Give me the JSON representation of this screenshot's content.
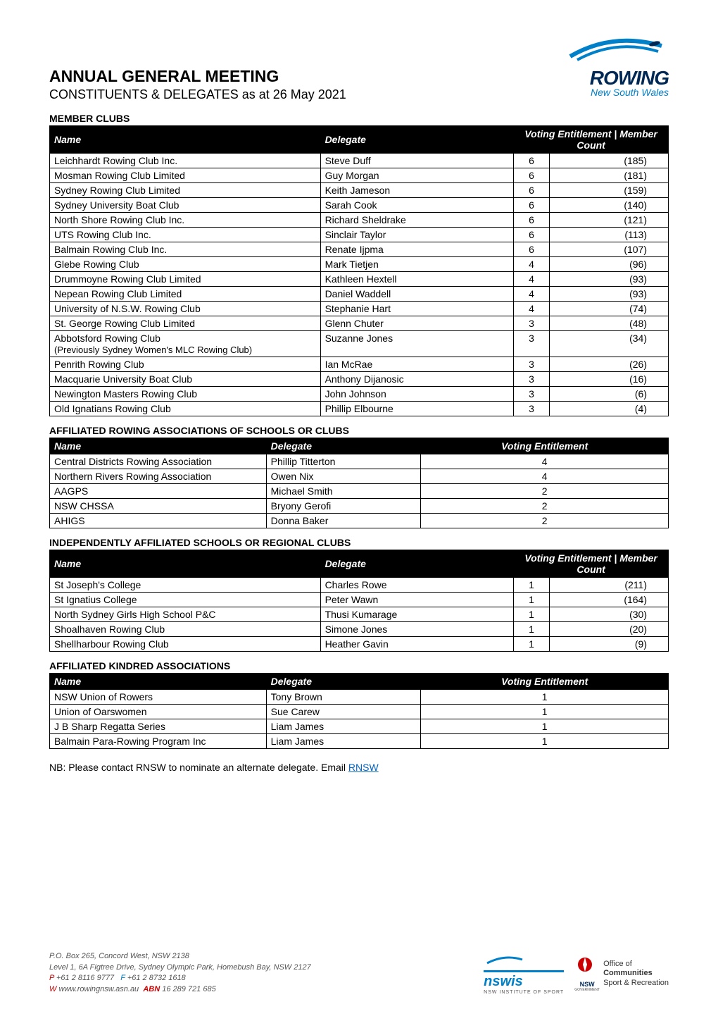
{
  "header": {
    "title": "ANNUAL GENERAL MEETING",
    "subtitle": "CONSTITUENTS & DELEGATES as at 26 May 2021",
    "logo_main": "ROWING",
    "logo_sub": "New South Wales"
  },
  "sections": {
    "member_clubs": {
      "title": "MEMBER CLUBS",
      "columns": [
        "Name",
        "Delegate",
        "Voting Entitlement | Member Count"
      ],
      "rows": [
        {
          "name": "Leichhardt Rowing Club Inc.",
          "delegate": "Steve Duff",
          "voting": "6",
          "count": "(185)"
        },
        {
          "name": "Mosman Rowing Club Limited",
          "delegate": "Guy Morgan",
          "voting": "6",
          "count": "(181)"
        },
        {
          "name": "Sydney Rowing Club Limited",
          "delegate": "Keith Jameson",
          "voting": "6",
          "count": "(159)"
        },
        {
          "name": "Sydney University Boat Club",
          "delegate": "Sarah Cook",
          "voting": "6",
          "count": "(140)"
        },
        {
          "name": "North Shore Rowing Club Inc.",
          "delegate": "Richard Sheldrake",
          "voting": "6",
          "count": "(121)"
        },
        {
          "name": "UTS Rowing Club Inc.",
          "delegate": "Sinclair Taylor",
          "voting": "6",
          "count": "(113)"
        },
        {
          "name": "Balmain Rowing Club Inc.",
          "delegate": "Renate Ijpma",
          "voting": "6",
          "count": "(107)"
        },
        {
          "name": "Glebe Rowing Club",
          "delegate": "Mark Tietjen",
          "voting": "4",
          "count": "(96)"
        },
        {
          "name": "Drummoyne Rowing Club Limited",
          "delegate": "Kathleen Hextell",
          "voting": "4",
          "count": "(93)"
        },
        {
          "name": "Nepean Rowing Club Limited",
          "delegate": "Daniel Waddell",
          "voting": "4",
          "count": "(93)"
        },
        {
          "name": "University of N.S.W. Rowing Club",
          "delegate": "Stephanie Hart",
          "voting": "4",
          "count": "(74)"
        },
        {
          "name": "St. George Rowing Club Limited",
          "delegate": "Glenn Chuter",
          "voting": "3",
          "count": "(48)"
        },
        {
          "name": "Abbotsford Rowing Club",
          "name2": "(Previously Sydney Women's MLC Rowing Club)",
          "delegate": "Suzanne Jones",
          "voting": "3",
          "count": "(34)"
        },
        {
          "name": "Penrith Rowing Club",
          "delegate": "Ian McRae",
          "voting": "3",
          "count": "(26)"
        },
        {
          "name": "Macquarie University Boat Club",
          "delegate": "Anthony Dijanosic",
          "voting": "3",
          "count": "(16)"
        },
        {
          "name": "Newington Masters Rowing Club",
          "delegate": "John Johnson",
          "voting": "3",
          "count": "(6)"
        },
        {
          "name": "Old Ignatians Rowing Club",
          "delegate": "Phillip Elbourne",
          "voting": "3",
          "count": "(4)"
        }
      ]
    },
    "affiliated_associations": {
      "title": "AFFILIATED ROWING ASSOCIATIONS OF SCHOOLS OR CLUBS",
      "columns": [
        "Name",
        "Delegate",
        "Voting Entitlement"
      ],
      "rows": [
        {
          "name": "Central Districts Rowing Association",
          "delegate": "Phillip Titterton",
          "voting": "4"
        },
        {
          "name": "Northern Rivers Rowing Association",
          "delegate": "Owen Nix",
          "voting": "4"
        },
        {
          "name": "AAGPS",
          "delegate": "Michael Smith",
          "voting": "2"
        },
        {
          "name": "NSW CHSSA",
          "delegate": "Bryony Gerofi",
          "voting": "2"
        },
        {
          "name": "AHIGS",
          "delegate": "Donna Baker",
          "voting": "2"
        }
      ]
    },
    "independent_schools": {
      "title": "INDEPENDENTLY AFFILIATED SCHOOLS OR REGIONAL CLUBS",
      "columns": [
        "Name",
        "Delegate",
        "Voting Entitlement | Member Count"
      ],
      "rows": [
        {
          "name": "St Joseph's College",
          "delegate": "Charles Rowe",
          "voting": "1",
          "count": "(211)"
        },
        {
          "name": "St Ignatius College",
          "delegate": "Peter Wawn",
          "voting": "1",
          "count": "(164)"
        },
        {
          "name": "North Sydney Girls High School P&C",
          "delegate": "Thusi Kumarage",
          "voting": "1",
          "count": "(30)"
        },
        {
          "name": "Shoalhaven Rowing Club",
          "delegate": "Simone Jones",
          "voting": "1",
          "count": "(20)"
        },
        {
          "name": "Shellharbour Rowing Club",
          "delegate": "Heather Gavin",
          "voting": "1",
          "count": "(9)"
        }
      ]
    },
    "kindred_associations": {
      "title": "AFFILIATED KINDRED ASSOCIATIONS",
      "columns": [
        "Name",
        "Delegate",
        "Voting Entitlement"
      ],
      "rows": [
        {
          "name": "NSW Union of Rowers",
          "delegate": "Tony Brown",
          "voting": "1"
        },
        {
          "name": "Union of Oarswomen",
          "delegate": "Sue Carew",
          "voting": "1"
        },
        {
          "name": "J B Sharp Regatta Series",
          "delegate": "Liam James",
          "voting": "1"
        },
        {
          "name": "Balmain Para-Rowing Program Inc",
          "delegate": "Liam James",
          "voting": "1"
        }
      ]
    }
  },
  "note": {
    "text": "NB: Please contact RNSW to nominate an alternate delegate. Email ",
    "link_text": "RNSW"
  },
  "footer": {
    "line1": "P.O. Box 265, Concord West, NSW 2138",
    "line2": "Level 1, 6A Figtree Drive, Sydney Olympic Park, Homebush Bay, NSW 2127",
    "p_label": "P",
    "p_value": "+61 2 8116 9777",
    "f_label": "F",
    "f_value": "+61 2 8732 1618",
    "w_label": "W",
    "w_value": "www.rowingnsw.asn.au",
    "abn_label": "ABN",
    "abn_value": "16 289 721 685",
    "nswis": "nswis",
    "nswis_sub": "NSW INSTITUTE OF SPORT",
    "nsw_gov": "NSW",
    "nsw_gov_sub": "GOVERNMENT",
    "office1": "Office of",
    "office2": "Communities",
    "office3": "Sport & Recreation"
  },
  "styling": {
    "header_bg": "#000000",
    "header_text": "#ffffff",
    "border_color": "#000000",
    "link_color": "#0563c1",
    "logo_blue": "#0080c8",
    "logo_navy": "#002855",
    "footer_red": "#cc0000"
  }
}
